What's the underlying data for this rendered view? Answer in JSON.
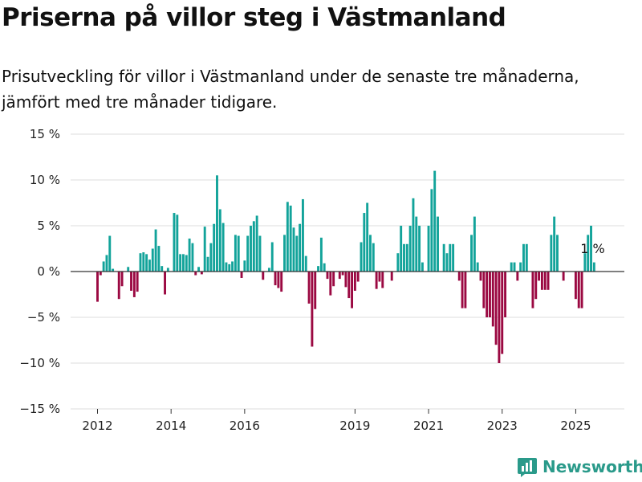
{
  "chart_data": {
    "type": "bar",
    "title": "Priserna på villor steg i Västmanland",
    "subtitle": "Prisutveckling för villor i Västmanland under de senaste tre månaderna, jämfört med tre månader tidigare.",
    "ylim": [
      -15,
      15
    ],
    "yticks": [
      {
        "value": 15,
        "label": "15 %"
      },
      {
        "value": 10,
        "label": "10 %"
      },
      {
        "value": 5,
        "label": "5 %"
      },
      {
        "value": 0,
        "label": "0 %"
      },
      {
        "value": -5,
        "label": "−5 %"
      },
      {
        "value": -10,
        "label": "−10 %"
      },
      {
        "value": -15,
        "label": "−15 %"
      }
    ],
    "xticks": [
      {
        "date": "2012-01",
        "label": "2012"
      },
      {
        "date": "2014-01",
        "label": "2014"
      },
      {
        "date": "2016-01",
        "label": "2016"
      },
      {
        "date": "2019-01",
        "label": "2019"
      },
      {
        "date": "2021-01",
        "label": "2021"
      },
      {
        "date": "2023-01",
        "label": "2023"
      },
      {
        "date": "2025-01",
        "label": "2025"
      }
    ],
    "grid": true,
    "positive_color": "#12a39a",
    "negative_color": "#9b0942",
    "annotation": {
      "date": "2025-06",
      "label": "1 %"
    },
    "series": [
      {
        "points": [
          {
            "date": "2012-01",
            "value": -3.3
          },
          {
            "date": "2012-02",
            "value": -0.4
          },
          {
            "date": "2012-03",
            "value": 1.1
          },
          {
            "date": "2012-04",
            "value": 1.8
          },
          {
            "date": "2012-05",
            "value": 3.9
          },
          {
            "date": "2012-06",
            "value": 0.3
          },
          {
            "date": "2012-07",
            "value": 0
          },
          {
            "date": "2012-08",
            "value": -3
          },
          {
            "date": "2012-09",
            "value": -1.6
          },
          {
            "date": "2012-10",
            "value": 0
          },
          {
            "date": "2012-11",
            "value": 0.5
          },
          {
            "date": "2012-12",
            "value": -2.1
          },
          {
            "date": "2013-01",
            "value": -2.8
          },
          {
            "date": "2013-02",
            "value": -2.2
          },
          {
            "date": "2013-03",
            "value": 2
          },
          {
            "date": "2013-04",
            "value": 2.1
          },
          {
            "date": "2013-05",
            "value": 1.9
          },
          {
            "date": "2013-06",
            "value": 1.3
          },
          {
            "date": "2013-07",
            "value": 2.5
          },
          {
            "date": "2013-08",
            "value": 4.6
          },
          {
            "date": "2013-09",
            "value": 2.8
          },
          {
            "date": "2013-10",
            "value": 0.6
          },
          {
            "date": "2013-11",
            "value": -2.5
          },
          {
            "date": "2013-12",
            "value": 0.4
          },
          {
            "date": "2014-01",
            "value": 0
          },
          {
            "date": "2014-02",
            "value": 6.4
          },
          {
            "date": "2014-03",
            "value": 6.2
          },
          {
            "date": "2014-04",
            "value": 1.9
          },
          {
            "date": "2014-05",
            "value": 1.9
          },
          {
            "date": "2014-06",
            "value": 1.8
          },
          {
            "date": "2014-07",
            "value": 3.6
          },
          {
            "date": "2014-08",
            "value": 3.1
          },
          {
            "date": "2014-09",
            "value": -0.4
          },
          {
            "date": "2014-10",
            "value": 0.5
          },
          {
            "date": "2014-11",
            "value": -0.3
          },
          {
            "date": "2014-12",
            "value": 4.9
          },
          {
            "date": "2015-01",
            "value": 1.6
          },
          {
            "date": "2015-02",
            "value": 3.1
          },
          {
            "date": "2015-03",
            "value": 5.2
          },
          {
            "date": "2015-04",
            "value": 10.5
          },
          {
            "date": "2015-05",
            "value": 6.8
          },
          {
            "date": "2015-06",
            "value": 5.3
          },
          {
            "date": "2015-07",
            "value": 1
          },
          {
            "date": "2015-08",
            "value": 0.8
          },
          {
            "date": "2015-09",
            "value": 1.1
          },
          {
            "date": "2015-10",
            "value": 4
          },
          {
            "date": "2015-11",
            "value": 3.9
          },
          {
            "date": "2015-12",
            "value": -0.7
          },
          {
            "date": "2016-01",
            "value": 1.2
          },
          {
            "date": "2016-02",
            "value": 3.9
          },
          {
            "date": "2016-03",
            "value": 5
          },
          {
            "date": "2016-04",
            "value": 5.5
          },
          {
            "date": "2016-05",
            "value": 6.1
          },
          {
            "date": "2016-06",
            "value": 3.9
          },
          {
            "date": "2016-07",
            "value": -0.9
          },
          {
            "date": "2016-08",
            "value": 0
          },
          {
            "date": "2016-09",
            "value": 0.4
          },
          {
            "date": "2016-10",
            "value": 3.2
          },
          {
            "date": "2016-11",
            "value": -1.5
          },
          {
            "date": "2016-12",
            "value": -1.8
          },
          {
            "date": "2017-01",
            "value": -2.2
          },
          {
            "date": "2017-02",
            "value": 4
          },
          {
            "date": "2017-03",
            "value": 7.6
          },
          {
            "date": "2017-04",
            "value": 7.2
          },
          {
            "date": "2017-05",
            "value": 4.8
          },
          {
            "date": "2017-06",
            "value": 3.9
          },
          {
            "date": "2017-07",
            "value": 5.2
          },
          {
            "date": "2017-08",
            "value": 7.9
          },
          {
            "date": "2017-09",
            "value": 1.7
          },
          {
            "date": "2017-10",
            "value": -3.5
          },
          {
            "date": "2017-11",
            "value": -8.2
          },
          {
            "date": "2017-12",
            "value": -4.1
          },
          {
            "date": "2018-01",
            "value": 0.6
          },
          {
            "date": "2018-02",
            "value": 3.7
          },
          {
            "date": "2018-03",
            "value": 0.9
          },
          {
            "date": "2018-04",
            "value": -0.8
          },
          {
            "date": "2018-05",
            "value": -2.6
          },
          {
            "date": "2018-06",
            "value": -1.6
          },
          {
            "date": "2018-07",
            "value": 0
          },
          {
            "date": "2018-08",
            "value": -0.8
          },
          {
            "date": "2018-09",
            "value": -0.4
          },
          {
            "date": "2018-10",
            "value": -1.7
          },
          {
            "date": "2018-11",
            "value": -2.9
          },
          {
            "date": "2018-12",
            "value": -4
          },
          {
            "date": "2019-01",
            "value": -2.1
          },
          {
            "date": "2019-02",
            "value": -1.1
          },
          {
            "date": "2019-03",
            "value": 3.2
          },
          {
            "date": "2019-04",
            "value": 6.4
          },
          {
            "date": "2019-05",
            "value": 7.5
          },
          {
            "date": "2019-06",
            "value": 4
          },
          {
            "date": "2019-07",
            "value": 3.1
          },
          {
            "date": "2019-08",
            "value": -1.9
          },
          {
            "date": "2019-09",
            "value": -1.1
          },
          {
            "date": "2019-10",
            "value": -1.8
          },
          {
            "date": "2019-11",
            "value": 0
          },
          {
            "date": "2019-12",
            "value": 0
          },
          {
            "date": "2020-01",
            "value": -1
          },
          {
            "date": "2020-02",
            "value": 0
          },
          {
            "date": "2020-03",
            "value": 2
          },
          {
            "date": "2020-04",
            "value": 5
          },
          {
            "date": "2020-05",
            "value": 3
          },
          {
            "date": "2020-06",
            "value": 3
          },
          {
            "date": "2020-07",
            "value": 5
          },
          {
            "date": "2020-08",
            "value": 8
          },
          {
            "date": "2020-09",
            "value": 6
          },
          {
            "date": "2020-10",
            "value": 5
          },
          {
            "date": "2020-11",
            "value": 1
          },
          {
            "date": "2020-12",
            "value": 0
          },
          {
            "date": "2021-01",
            "value": 5
          },
          {
            "date": "2021-02",
            "value": 9
          },
          {
            "date": "2021-03",
            "value": 11
          },
          {
            "date": "2021-04",
            "value": 6
          },
          {
            "date": "2021-05",
            "value": 0
          },
          {
            "date": "2021-06",
            "value": 3
          },
          {
            "date": "2021-07",
            "value": 2
          },
          {
            "date": "2021-08",
            "value": 3
          },
          {
            "date": "2021-09",
            "value": 3
          },
          {
            "date": "2021-10",
            "value": 0
          },
          {
            "date": "2021-11",
            "value": -1
          },
          {
            "date": "2021-12",
            "value": -4
          },
          {
            "date": "2022-01",
            "value": -4
          },
          {
            "date": "2022-02",
            "value": 0
          },
          {
            "date": "2022-03",
            "value": 4
          },
          {
            "date": "2022-04",
            "value": 6
          },
          {
            "date": "2022-05",
            "value": 1
          },
          {
            "date": "2022-06",
            "value": -1
          },
          {
            "date": "2022-07",
            "value": -4
          },
          {
            "date": "2022-08",
            "value": -5
          },
          {
            "date": "2022-09",
            "value": -5
          },
          {
            "date": "2022-10",
            "value": -6
          },
          {
            "date": "2022-11",
            "value": -8
          },
          {
            "date": "2022-12",
            "value": -10
          },
          {
            "date": "2023-01",
            "value": -9
          },
          {
            "date": "2023-02",
            "value": -5
          },
          {
            "date": "2023-03",
            "value": 0
          },
          {
            "date": "2023-04",
            "value": 1
          },
          {
            "date": "2023-05",
            "value": 1
          },
          {
            "date": "2023-06",
            "value": -1
          },
          {
            "date": "2023-07",
            "value": 1
          },
          {
            "date": "2023-08",
            "value": 3
          },
          {
            "date": "2023-09",
            "value": 3
          },
          {
            "date": "2023-10",
            "value": 0
          },
          {
            "date": "2023-11",
            "value": -4
          },
          {
            "date": "2023-12",
            "value": -3
          },
          {
            "date": "2024-01",
            "value": -1
          },
          {
            "date": "2024-02",
            "value": -2
          },
          {
            "date": "2024-03",
            "value": -2
          },
          {
            "date": "2024-04",
            "value": -2
          },
          {
            "date": "2024-05",
            "value": 4
          },
          {
            "date": "2024-06",
            "value": 6
          },
          {
            "date": "2024-07",
            "value": 4
          },
          {
            "date": "2024-08",
            "value": 0
          },
          {
            "date": "2024-09",
            "value": -1
          },
          {
            "date": "2024-10",
            "value": 0
          },
          {
            "date": "2024-11",
            "value": 0
          },
          {
            "date": "2024-12",
            "value": 0
          },
          {
            "date": "2025-01",
            "value": -3
          },
          {
            "date": "2025-02",
            "value": -4
          },
          {
            "date": "2025-03",
            "value": -4
          },
          {
            "date": "2025-04",
            "value": 2
          },
          {
            "date": "2025-05",
            "value": 4
          },
          {
            "date": "2025-06",
            "value": 5
          },
          {
            "date": "2025-07",
            "value": 1
          }
        ]
      }
    ]
  },
  "branding": {
    "name": "Newsworthy",
    "icon": "bar-chart-logo-icon",
    "color": "#2a9a8a"
  }
}
